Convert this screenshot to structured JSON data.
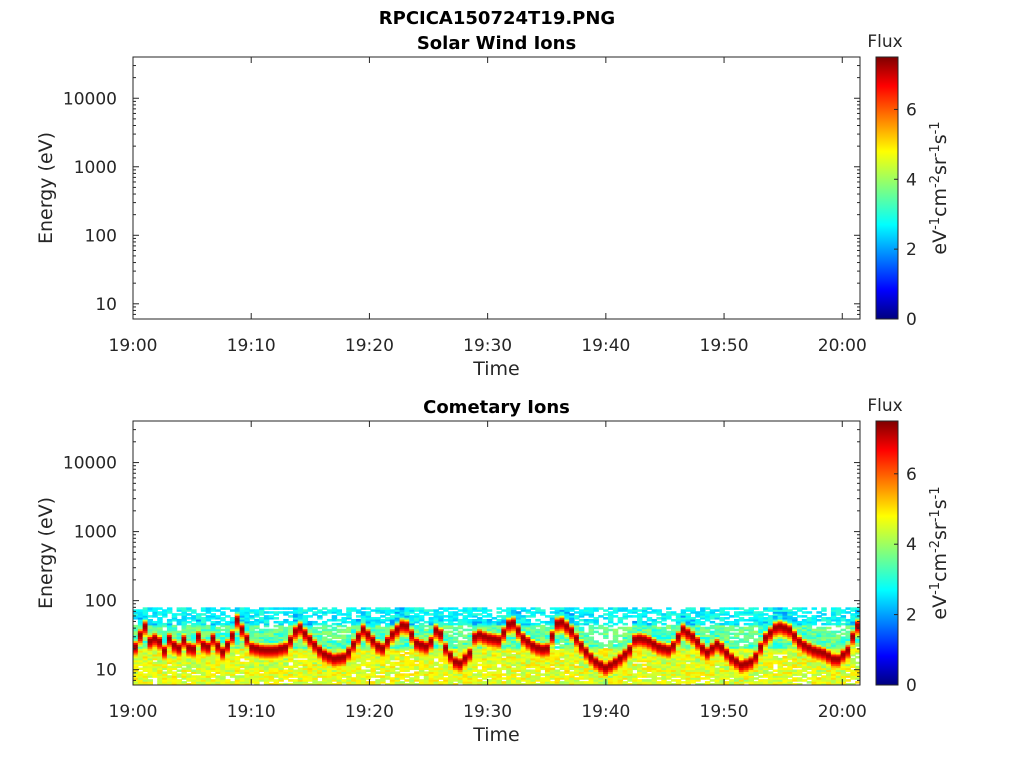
{
  "figure": {
    "title": "RPCICA150724T19.PNG"
  },
  "chart_data": [
    {
      "type": "heatmap",
      "title": "Solar Wind Ions",
      "xlabel": "Time",
      "ylabel": "Energy (eV)",
      "x_ticks": [
        "19:00",
        "19:10",
        "19:20",
        "19:30",
        "19:40",
        "19:50",
        "20:00"
      ],
      "x_range_minutes": [
        0,
        61.5
      ],
      "y_scale": "log",
      "y_ticks": [
        10,
        100,
        1000,
        10000
      ],
      "y_tick_labels": [
        "10",
        "100",
        "1000",
        "10000"
      ],
      "y_range": [
        6,
        40000
      ],
      "colorbar": {
        "title": "Flux",
        "label": "eV-1cm-2sr-1s-1",
        "ticks": [
          0,
          2,
          4,
          6
        ],
        "range": [
          0,
          7.5
        ],
        "colormap": "jet"
      },
      "bands": []
    },
    {
      "type": "heatmap",
      "title": "Cometary Ions",
      "xlabel": "Time",
      "ylabel": "Energy (eV)",
      "x_ticks": [
        "19:00",
        "19:10",
        "19:20",
        "19:30",
        "19:40",
        "19:50",
        "20:00"
      ],
      "x_range_minutes": [
        0,
        61.5
      ],
      "y_scale": "log",
      "y_ticks": [
        10,
        100,
        1000,
        10000
      ],
      "y_tick_labels": [
        "10",
        "100",
        "1000",
        "10000"
      ],
      "y_range": [
        6,
        40000
      ],
      "colorbar": {
        "title": "Flux",
        "label": "eV-1cm-2sr-1s-1",
        "ticks": [
          0,
          2,
          4,
          6
        ],
        "range": [
          0,
          7.5
        ],
        "colormap": "jet"
      },
      "bands": [
        {
          "t": 0.0,
          "e": 18
        },
        {
          "t": 0.5,
          "e": 30
        },
        {
          "t": 1.0,
          "e": 45
        },
        {
          "t": 1.6,
          "e": 22
        },
        {
          "t": 2.0,
          "e": 35
        },
        {
          "t": 2.6,
          "e": 18
        },
        {
          "t": 3.0,
          "e": 30
        },
        {
          "t": 3.8,
          "e": 20
        },
        {
          "t": 4.3,
          "e": 28
        },
        {
          "t": 5.0,
          "e": 18
        },
        {
          "t": 5.5,
          "e": 32
        },
        {
          "t": 6.2,
          "e": 20
        },
        {
          "t": 6.8,
          "e": 30
        },
        {
          "t": 7.5,
          "e": 18
        },
        {
          "t": 8.3,
          "e": 28
        },
        {
          "t": 8.8,
          "e": 55
        },
        {
          "t": 10.0,
          "e": 22
        },
        {
          "t": 11.0,
          "e": 20
        },
        {
          "t": 12.0,
          "e": 20
        },
        {
          "t": 13.0,
          "e": 22
        },
        {
          "t": 14.0,
          "e": 45
        },
        {
          "t": 15.0,
          "e": 28
        },
        {
          "t": 16.0,
          "e": 18
        },
        {
          "t": 17.0,
          "e": 15
        },
        {
          "t": 18.0,
          "e": 16
        },
        {
          "t": 19.0,
          "e": 30
        },
        {
          "t": 19.5,
          "e": 40
        },
        {
          "t": 20.5,
          "e": 25
        },
        {
          "t": 21.0,
          "e": 20
        },
        {
          "t": 22.0,
          "e": 35
        },
        {
          "t": 23.0,
          "e": 50
        },
        {
          "t": 24.0,
          "e": 25
        },
        {
          "t": 25.0,
          "e": 22
        },
        {
          "t": 25.8,
          "e": 45
        },
        {
          "t": 26.5,
          "e": 20
        },
        {
          "t": 27.5,
          "e": 12
        },
        {
          "t": 28.5,
          "e": 18
        },
        {
          "t": 29.0,
          "e": 35
        },
        {
          "t": 30.0,
          "e": 30
        },
        {
          "t": 31.0,
          "e": 28
        },
        {
          "t": 32.0,
          "e": 55
        },
        {
          "t": 33.0,
          "e": 30
        },
        {
          "t": 34.0,
          "e": 22
        },
        {
          "t": 35.0,
          "e": 20
        },
        {
          "t": 36.0,
          "e": 55
        },
        {
          "t": 37.0,
          "e": 40
        },
        {
          "t": 38.0,
          "e": 22
        },
        {
          "t": 39.0,
          "e": 14
        },
        {
          "t": 40.0,
          "e": 11
        },
        {
          "t": 41.0,
          "e": 14
        },
        {
          "t": 42.0,
          "e": 20
        },
        {
          "t": 42.5,
          "e": 30
        },
        {
          "t": 43.5,
          "e": 28
        },
        {
          "t": 44.5,
          "e": 22
        },
        {
          "t": 45.5,
          "e": 20
        },
        {
          "t": 46.5,
          "e": 40
        },
        {
          "t": 47.5,
          "e": 30
        },
        {
          "t": 48.5,
          "e": 18
        },
        {
          "t": 49.5,
          "e": 25
        },
        {
          "t": 50.5,
          "e": 16
        },
        {
          "t": 51.5,
          "e": 12
        },
        {
          "t": 52.5,
          "e": 14
        },
        {
          "t": 53.5,
          "e": 30
        },
        {
          "t": 54.5,
          "e": 45
        },
        {
          "t": 55.5,
          "e": 40
        },
        {
          "t": 56.5,
          "e": 25
        },
        {
          "t": 57.5,
          "e": 20
        },
        {
          "t": 58.5,
          "e": 18
        },
        {
          "t": 59.5,
          "e": 14
        },
        {
          "t": 60.5,
          "e": 20
        },
        {
          "t": 61.2,
          "e": 45
        }
      ]
    }
  ]
}
